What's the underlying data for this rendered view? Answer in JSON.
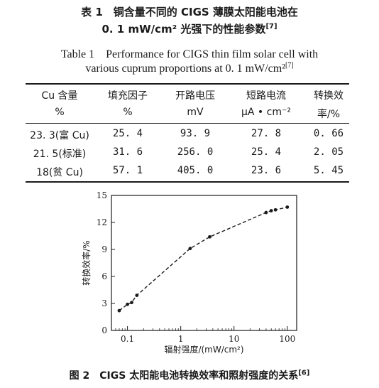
{
  "table": {
    "title_cn_line1": "表 1　铜含量不同的 CIGS 薄膜太阳能电池在",
    "title_cn_line2": "0. 1 mW/cm² 光强下的性能参数",
    "title_cn_ref": "[7]",
    "title_en_line1": "Table 1　Performance for CIGS thin film solar cell with",
    "title_en_line2": "various cuprum proportions at 0. 1 mW/cm²",
    "title_en_ref": "[7]",
    "headers": [
      {
        "line1": "Cu 含量",
        "line2": "%"
      },
      {
        "line1": "填充因子",
        "line2": "%"
      },
      {
        "line1": "开路电压",
        "line2": "mV"
      },
      {
        "line1": "短路电流",
        "line2": "μA • cm⁻²"
      },
      {
        "line1": "转换效",
        "line2": "率/%"
      }
    ],
    "rows": [
      [
        "23. 3(富 Cu)",
        "25. 4",
        "93. 9",
        "27. 8",
        "0. 66"
      ],
      [
        "21. 5(标准)",
        "31. 6",
        "256. 0",
        "25. 4",
        "2. 05"
      ],
      [
        "18(贫 Cu)",
        "57. 1",
        "405. 0",
        "23. 6",
        "5. 45"
      ]
    ]
  },
  "figure": {
    "caption": "图 2　CIGS 太阳能电池转换效率和照射强度的关系",
    "caption_ref": "[6]"
  },
  "chart_data": {
    "type": "line",
    "xlabel": "辐射强度/(mW/cm²)",
    "ylabel": "转换效率/%",
    "xscale": "log",
    "xlim": [
      0.05,
      150
    ],
    "ylim": [
      0,
      15
    ],
    "x_ticks": [
      0.1,
      1,
      10,
      100
    ],
    "x_tick_labels": [
      "0.1",
      "1",
      "10",
      "100"
    ],
    "y_ticks": [
      0,
      3,
      6,
      9,
      12,
      15
    ],
    "y_tick_labels": [
      "0",
      "3",
      "6",
      "9",
      "12",
      "15"
    ],
    "grid": false,
    "series": [
      {
        "x": [
          0.07,
          0.1,
          0.12,
          0.15,
          1.5,
          3.5,
          40,
          50,
          60,
          100
        ],
        "y": [
          2.2,
          2.9,
          3.1,
          3.9,
          9.1,
          10.4,
          13.1,
          13.3,
          13.4,
          13.7
        ]
      }
    ]
  }
}
